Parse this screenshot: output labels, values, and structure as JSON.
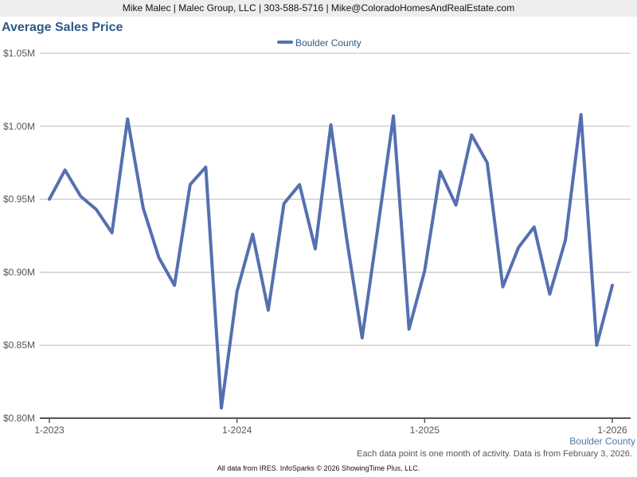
{
  "header": {
    "contact": "Mike Malec | Malec Group, LLC | 303-588-5716 | Mike@ColoradoHomesAndRealEstate.com"
  },
  "chart_data": {
    "type": "line",
    "title": "Average Sales Price",
    "legend_placement": "top-center",
    "grid": true,
    "ylim": [
      0.8,
      1.05
    ],
    "yticks": [
      {
        "value": 1.05,
        "label": "$1.05M"
      },
      {
        "value": 1.0,
        "label": "$1.00M"
      },
      {
        "value": 0.95,
        "label": "$0.95M"
      },
      {
        "value": 0.9,
        "label": "$0.90M"
      },
      {
        "value": 0.85,
        "label": "$0.85M"
      },
      {
        "value": 0.8,
        "label": "$0.80M"
      }
    ],
    "xticks": [
      {
        "index": 0,
        "label": "1-2023"
      },
      {
        "index": 12,
        "label": "1-2024"
      },
      {
        "index": 24,
        "label": "1-2025"
      },
      {
        "index": 36,
        "label": "1-2026"
      }
    ],
    "x": [
      "2023-01",
      "2023-02",
      "2023-03",
      "2023-04",
      "2023-05",
      "2023-06",
      "2023-07",
      "2023-08",
      "2023-09",
      "2023-10",
      "2023-11",
      "2023-12",
      "2024-01",
      "2024-02",
      "2024-03",
      "2024-04",
      "2024-05",
      "2024-06",
      "2024-07",
      "2024-08",
      "2024-09",
      "2024-10",
      "2024-11",
      "2024-12",
      "2025-01",
      "2025-02",
      "2025-03",
      "2025-04",
      "2025-05",
      "2025-06",
      "2025-07",
      "2025-08",
      "2025-09",
      "2025-10",
      "2025-11",
      "2025-12",
      "2026-01"
    ],
    "series": [
      {
        "name": "Boulder County",
        "color": "#5470b0",
        "values": [
          0.95,
          0.97,
          0.952,
          0.943,
          0.927,
          1.005,
          0.944,
          0.91,
          0.891,
          0.96,
          0.972,
          0.807,
          0.887,
          0.926,
          0.874,
          0.947,
          0.96,
          0.916,
          1.001,
          0.924,
          0.855,
          0.93,
          1.007,
          0.861,
          0.901,
          0.969,
          0.946,
          0.994,
          0.975,
          0.89,
          0.917,
          0.931,
          0.885,
          0.922,
          1.008,
          0.85,
          0.891
        ]
      }
    ]
  },
  "region_label": "Boulder County",
  "note": "Each data point is one month of activity. Data is from February 3, 2026.",
  "footer": "All data from IRES. InfoSparks © 2026 ShowingTime Plus, LLC."
}
